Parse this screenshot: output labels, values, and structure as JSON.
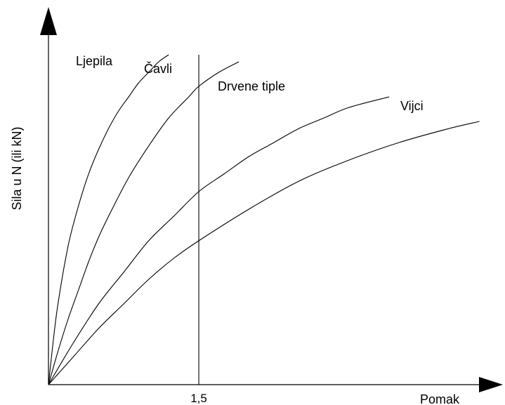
{
  "chart_data": {
    "type": "line",
    "title": "",
    "xlabel": "Pomak",
    "ylabel": "Sila u N (ili kN)",
    "xlim": [
      0,
      4.5
    ],
    "ylim": [
      0,
      9.5
    ],
    "grid": false,
    "legend": "none",
    "x_ticks": [
      "1,5"
    ],
    "reference_line": {
      "x": 1.5,
      "label": "1,5"
    },
    "series": [
      {
        "name": "Ljepila",
        "x": [
          0,
          0.05,
          0.1,
          0.2,
          0.3,
          0.4,
          0.5,
          0.6,
          0.7,
          0.8,
          0.9,
          1.0,
          1.1,
          1.2
        ],
        "y": [
          0,
          1.3,
          2.4,
          4.0,
          5.1,
          6.0,
          6.7,
          7.3,
          7.8,
          8.2,
          8.6,
          8.9,
          9.2,
          9.4
        ]
      },
      {
        "name": "Čavli",
        "x": [
          0,
          0.1,
          0.2,
          0.3,
          0.4,
          0.5,
          0.6,
          0.8,
          1.0,
          1.2,
          1.4,
          1.5,
          1.7,
          1.9
        ],
        "y": [
          0,
          1.0,
          1.9,
          2.7,
          3.5,
          4.2,
          4.8,
          5.9,
          6.8,
          7.6,
          8.2,
          8.5,
          8.9,
          9.2
        ]
      },
      {
        "name": "Drvene tiple",
        "x": [
          0,
          0.25,
          0.5,
          0.75,
          1.0,
          1.25,
          1.5,
          1.75,
          2.0,
          2.25,
          2.5,
          2.75,
          3.0,
          3.4
        ],
        "y": [
          0,
          1.2,
          2.3,
          3.2,
          4.1,
          4.8,
          5.5,
          6.0,
          6.5,
          6.9,
          7.3,
          7.6,
          7.9,
          8.2
        ]
      },
      {
        "name": "Vijci",
        "x": [
          0,
          0.25,
          0.5,
          0.75,
          1.0,
          1.25,
          1.5,
          2.0,
          2.5,
          3.0,
          3.5,
          4.0,
          4.3
        ],
        "y": [
          0,
          0.8,
          1.6,
          2.3,
          3.0,
          3.6,
          4.1,
          5.0,
          5.8,
          6.4,
          6.9,
          7.3,
          7.5
        ]
      }
    ]
  }
}
